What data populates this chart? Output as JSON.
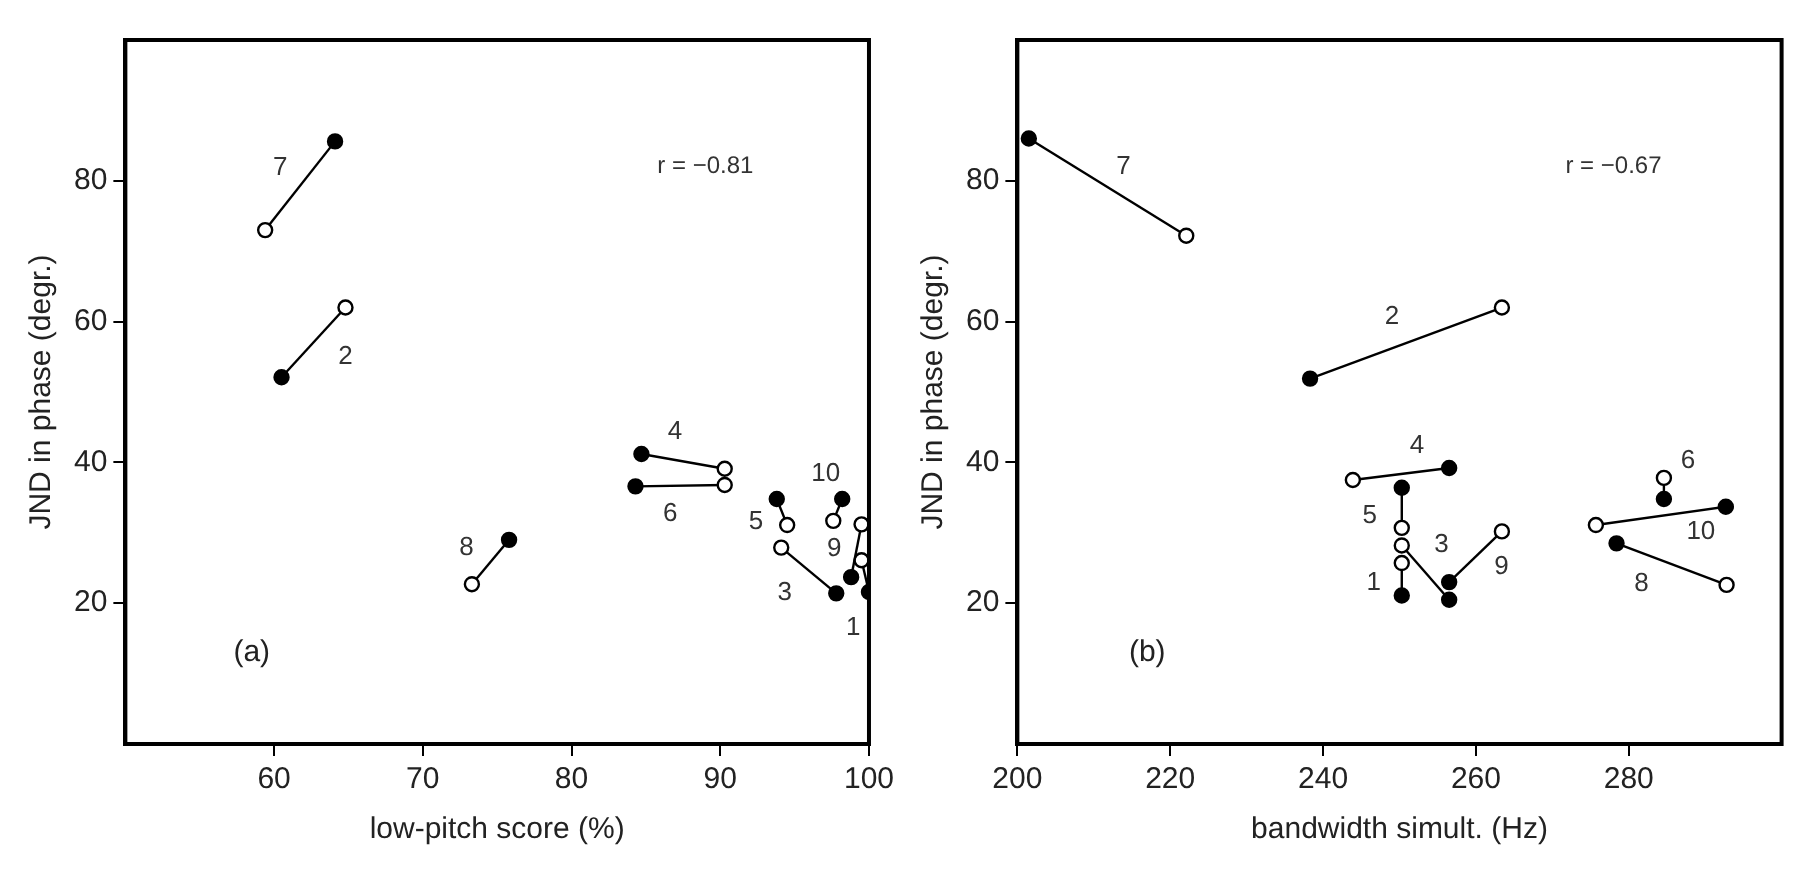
{
  "chart_data": [
    {
      "type": "line",
      "xlabel": "low-pitch score (%)",
      "ylabel": "JND in phase (degr.)",
      "xlim": [
        50,
        100
      ],
      "ylim": [
        0,
        100
      ],
      "xticks": [
        60,
        70,
        80,
        90,
        100
      ],
      "yticks": [
        20,
        40,
        60,
        80
      ],
      "marker": "circle",
      "line_style": "solid",
      "annotations": [
        "r = −0.81",
        "(a)"
      ],
      "series": [
        {
          "name": "7",
          "color": "#000000",
          "x": [
            59.4,
            64.1
          ],
          "values": [
            73,
            85.6
          ],
          "colors": [
            "#ffffff",
            "#000000"
          ]
        },
        {
          "name": "2",
          "color": "#000000",
          "x": [
            64.8,
            60.5
          ],
          "values": [
            62,
            52.1
          ],
          "colors": [
            "#ffffff",
            "#000000"
          ]
        },
        {
          "name": "8",
          "color": "#000000",
          "x": [
            73.3,
            75.8
          ],
          "values": [
            22.7,
            29
          ],
          "colors": [
            "#ffffff",
            "#000000"
          ]
        },
        {
          "name": "4",
          "color": "#000000",
          "x": [
            90.3,
            84.7
          ],
          "values": [
            39.1,
            41.2
          ],
          "colors": [
            "#ffffff",
            "#000000"
          ]
        },
        {
          "name": "6",
          "color": "#000000",
          "x": [
            90.3,
            84.3
          ],
          "values": [
            36.8,
            36.6
          ],
          "colors": [
            "#ffffff",
            "#000000"
          ]
        },
        {
          "name": "5",
          "color": "#000000",
          "x": [
            94.5,
            93.8
          ],
          "values": [
            31.1,
            34.8
          ],
          "colors": [
            "#ffffff",
            "#000000"
          ]
        },
        {
          "name": "3",
          "color": "#000000",
          "x": [
            94.1,
            97.8
          ],
          "values": [
            27.9,
            21.4
          ],
          "colors": [
            "#ffffff",
            "#000000"
          ]
        },
        {
          "name": "10",
          "color": "#000000",
          "x": [
            97.6,
            98.2
          ],
          "values": [
            31.7,
            34.8
          ],
          "colors": [
            "#ffffff",
            "#000000"
          ]
        },
        {
          "name": "9",
          "color": "#000000",
          "x": [
            99.5,
            98.8
          ],
          "values": [
            31.2,
            23.7
          ],
          "colors": [
            "#ffffff",
            "#000000"
          ]
        },
        {
          "name": "1",
          "color": "#000000",
          "x": [
            99.5,
            100
          ],
          "values": [
            26.1,
            21.6
          ],
          "colors": [
            "#ffffff",
            "#000000"
          ]
        }
      ]
    },
    {
      "type": "line",
      "xlabel": "bandwidth simult. (Hz)",
      "ylabel": "JND in phase (degr.)",
      "xlim": [
        200,
        300
      ],
      "ylim": [
        0,
        100
      ],
      "xticks": [
        200,
        220,
        240,
        260,
        280
      ],
      "yticks": [
        20,
        40,
        60,
        80
      ],
      "marker": "circle",
      "line_style": "solid",
      "annotations": [
        "r = −0.67",
        "(b)"
      ],
      "series": [
        {
          "name": "7",
          "color": "#000000",
          "x": [
            222.1,
            201.5
          ],
          "values": [
            72.2,
            86
          ],
          "colors": [
            "#ffffff",
            "#000000"
          ]
        },
        {
          "name": "2",
          "color": "#000000",
          "x": [
            263.4,
            238.3
          ],
          "values": [
            62,
            51.9
          ],
          "colors": [
            "#ffffff",
            "#000000"
          ]
        },
        {
          "name": "4",
          "color": "#000000",
          "x": [
            243.9,
            256.5
          ],
          "values": [
            37.5,
            39.2
          ],
          "colors": [
            "#ffffff",
            "#000000"
          ]
        },
        {
          "name": "5",
          "color": "#000000",
          "x": [
            250.3,
            250.3
          ],
          "values": [
            30.7,
            36.4
          ],
          "colors": [
            "#ffffff",
            "#000000"
          ]
        },
        {
          "name": "3",
          "color": "#000000",
          "x": [
            250.3,
            256.5
          ],
          "values": [
            28.2,
            20.5
          ],
          "colors": [
            "#ffffff",
            "#000000"
          ]
        },
        {
          "name": "1",
          "color": "#000000",
          "x": [
            250.3,
            250.3
          ],
          "values": [
            25.7,
            21.1
          ],
          "colors": [
            "#ffffff",
            "#000000"
          ]
        },
        {
          "name": "9",
          "color": "#000000",
          "x": [
            263.4,
            256.5
          ],
          "values": [
            30.2,
            23
          ],
          "colors": [
            "#ffffff",
            "#000000"
          ]
        },
        {
          "name": "6",
          "color": "#000000",
          "x": [
            284.6,
            284.6
          ],
          "values": [
            37.8,
            34.8
          ],
          "colors": [
            "#ffffff",
            "#000000"
          ]
        },
        {
          "name": "10",
          "color": "#000000",
          "x": [
            275.7,
            292.7
          ],
          "values": [
            31.1,
            33.7
          ],
          "colors": [
            "#ffffff",
            "#000000"
          ]
        },
        {
          "name": "8",
          "color": "#000000",
          "x": [
            292.8,
            278.4
          ],
          "values": [
            22.6,
            28.5
          ],
          "colors": [
            "#ffffff",
            "#000000"
          ]
        }
      ]
    }
  ]
}
